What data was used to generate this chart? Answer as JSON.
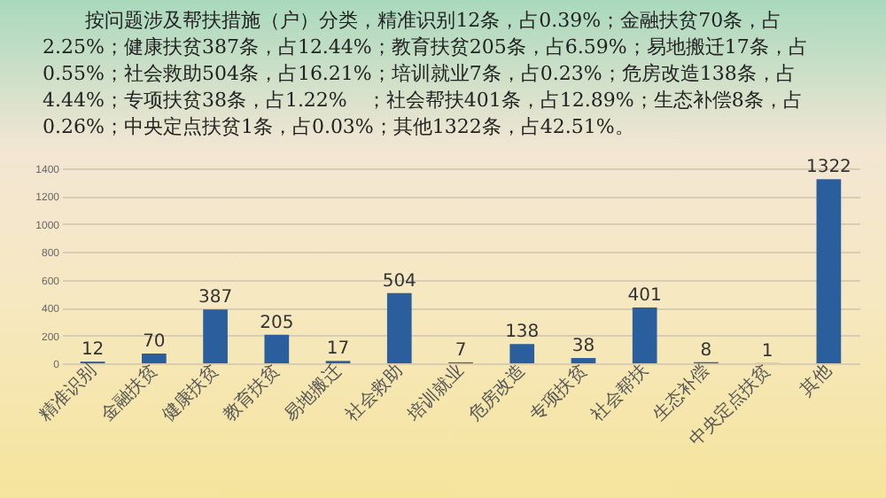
{
  "chart_data": {
    "type": "bar",
    "title": "按问题涉及帮扶措施（户）分类，精准识别12条，占0.39%；金融扶贫70条，占2.25%；健康扶贫387条，占12.44%；教育扶贫205条，占6.59%；易地搬迁17条，占0.55%；社会救助504条，占16.21%；培训就业7条，占0.23%；危房改造138条，占4.44%；专项扶贫38条，占1.22%　；社会帮扶401条，占12.89%；生态补偿8条，占0.26%；中央定点扶贫1条，占0.03%；其他1322条，占42.51%。",
    "categories": [
      "精准识别",
      "金融扶贫",
      "健康扶贫",
      "教育扶贫",
      "易地搬迁",
      "社会救助",
      "培训就业",
      "危房改造",
      "专项扶贫",
      "社会帮扶",
      "生态补偿",
      "中央定点扶贫",
      "其他"
    ],
    "values": [
      12,
      70,
      387,
      205,
      17,
      504,
      7,
      138,
      38,
      401,
      8,
      1,
      1322
    ],
    "color": "#2a5e9c",
    "ylim": [
      0,
      1400
    ],
    "yticks": [
      0,
      200,
      400,
      600,
      800,
      1000,
      1200,
      1400
    ],
    "grid": "y",
    "data_labels": true
  }
}
